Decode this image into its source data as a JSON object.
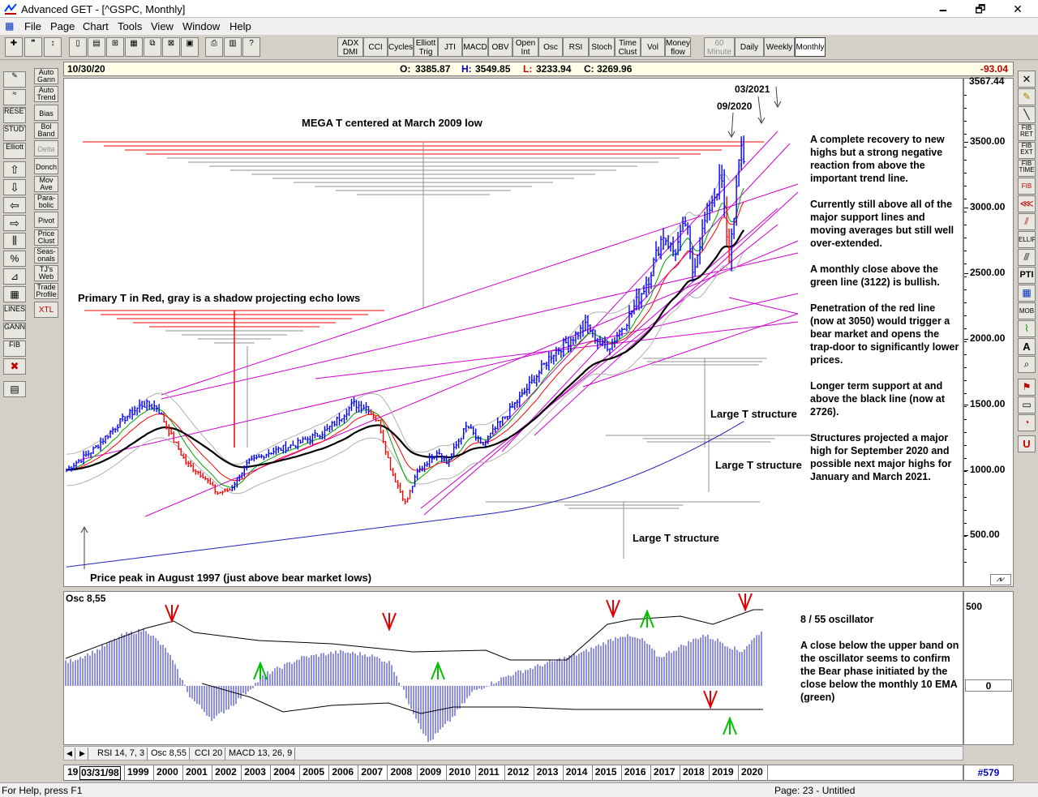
{
  "window": {
    "title": "Advanced GET - [^GSPC, Monthly]",
    "minimize": "🗕",
    "maximize": "🗗",
    "close": "✕",
    "mdi_min": "_",
    "mdi_max": "□",
    "mdi_close": "x"
  },
  "menu": [
    "File",
    "Page",
    "Chart",
    "Tools",
    "View",
    "Window",
    "Help"
  ],
  "toolbar": {
    "studies": [
      "ADX DMI",
      "CCI",
      "Cycles",
      "Elliott Trig",
      "JTI",
      "MACD",
      "OBV",
      "Open Int",
      "Osc",
      "RSI",
      "Stoch",
      "Time Clust",
      "Vol",
      "Money flow"
    ],
    "periods": [
      "60 Minute",
      "Daily",
      "Weekly",
      "Monthly"
    ],
    "active_period": "Monthly"
  },
  "left_tools": [
    "Auto Gann",
    "Auto Trend",
    "Bias",
    "Bol Band",
    "Delta",
    "Donch",
    "Mov Ave",
    "Para-bolic",
    "Pivot",
    "Price Clust",
    "Seas-onals",
    "TJ's Web",
    "Trade Profile",
    "XTL"
  ],
  "left_icons": [
    "RESET",
    "STUDY",
    "Elliott",
    "LINES",
    "GANN",
    "FIB"
  ],
  "right_tools": [
    "FIB RET",
    "FIB EXT",
    "FIB TIME",
    "FIB",
    "ELLIPS",
    "PTI",
    "MOB",
    "A"
  ],
  "infobar": {
    "date": "10/30/20",
    "open_label": "O:",
    "open": "3385.87",
    "high_label": "H:",
    "high": "3549.85",
    "low_label": "L:",
    "low": "3233.94",
    "close_label": "C:",
    "close": "3269.96",
    "change": "-93.04"
  },
  "price_scale": {
    "top_label": "3567.44",
    "ticks": [
      "3500.00",
      "3000.00",
      "2500.00",
      "2000.00",
      "1500.00",
      "1000.00",
      "500.00"
    ]
  },
  "annotations": {
    "mega_t": "MEGA T centered at March 2009 low",
    "primary_t": "Primary T in Red, gray is a shadow projecting echo lows",
    "price_peak": "Price peak in August 1997 (just above bear market lows)",
    "large_t_1": "Large T structure",
    "large_t_2": "Large T structure",
    "large_t_3": "Large T structure",
    "date_0920": "09/2020",
    "date_0321": "03/2021"
  },
  "commentary": [
    "A complete recovery to new highs but a strong negative reaction from above the important trend line.",
    "Currently still above all of the major support lines and moving averages but still well over-extended.",
    "A monthly close above the green line (3122) is bullish.",
    "Penetration of the red line (now at 3050) would trigger a bear market and opens the trap-door to significantly lower prices.",
    "Longer term support at and above the black line (now at 2726).",
    "Structures projected a major high for September 2020 and possible next major highs for January and March 2021."
  ],
  "oscillator": {
    "label": "Osc 8,55",
    "scale_top": "500",
    "scale_zero": "0",
    "title": "8 / 55 oscillator",
    "note": "A close below the upper band on the oscillator seems to confirm the Bear phase initiated by the close below the monthly 10 EMA (green)"
  },
  "tabs": [
    "RSI 14, 7, 3",
    "Osc 8,55",
    "CCI 20",
    "MACD 13, 26, 9"
  ],
  "active_tab": "Osc 8,55",
  "dates": {
    "cursor_date": "03/31/98",
    "cut_year": "19",
    "years": [
      "1999",
      "2000",
      "2001",
      "2002",
      "2003",
      "2004",
      "2005",
      "2006",
      "2007",
      "2008",
      "2009",
      "2010",
      "2011",
      "2012",
      "2013",
      "2014",
      "2015",
      "2016",
      "2017",
      "2018",
      "2019",
      "2020"
    ]
  },
  "bar_count": "#579",
  "status": {
    "help": "For Help, press F1",
    "page": "Page: 23 - Untitled"
  },
  "colors": {
    "price_bars": "#0000ff",
    "down_bars": "#ff0000",
    "trend_lines": "#d000d0",
    "ema_green": "#00a000",
    "ma_red": "#ff0000",
    "ma_black": "#000000",
    "long_ma_blue": "#2020c0",
    "envelope": "#b0b0b0"
  }
}
